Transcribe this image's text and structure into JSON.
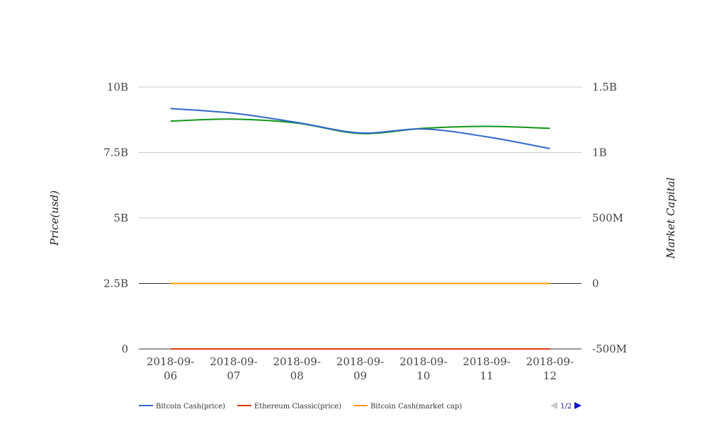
{
  "chart_data": {
    "type": "line",
    "categories": [
      "2018-09-06",
      "2018-09-07",
      "2018-09-08",
      "2018-09-09",
      "2018-09-10",
      "2018-09-11",
      "2018-09-12"
    ],
    "category_lines": [
      [
        "2018-09-",
        "06"
      ],
      [
        "2018-09-",
        "07"
      ],
      [
        "2018-09-",
        "08"
      ],
      [
        "2018-09-",
        "09"
      ],
      [
        "2018-09-",
        "10"
      ],
      [
        "2018-09-",
        "11"
      ],
      [
        "2018-09-",
        "12"
      ]
    ],
    "left_axis": {
      "title": "Price(usd)",
      "range": [
        0,
        10000000000
      ],
      "ticks": [
        {
          "value": 0,
          "label": "0"
        },
        {
          "value": 2500000000,
          "label": "2.5B"
        },
        {
          "value": 5000000000,
          "label": "5B"
        },
        {
          "value": 7500000000,
          "label": "7.5B"
        },
        {
          "value": 10000000000,
          "label": "10B"
        }
      ]
    },
    "right_axis": {
      "title": "Market Capital",
      "range": [
        -500000000,
        1500000000
      ],
      "ticks": [
        {
          "value": -500000000,
          "label": "-500M"
        },
        {
          "value": 0,
          "label": "0"
        },
        {
          "value": 500000000,
          "label": "500M"
        },
        {
          "value": 1000000000,
          "label": "1B"
        },
        {
          "value": 1500000000,
          "label": "1.5B"
        }
      ]
    },
    "series": [
      {
        "name": "Bitcoin Cash(price)",
        "axis": "left",
        "color": "#3366cc",
        "values": [
          9180000000,
          9000000000,
          8650000000,
          8250000000,
          8400000000,
          8100000000,
          7650000000
        ]
      },
      {
        "name": "Ethereum Classic(price)",
        "axis": "left",
        "color": "#dc3912",
        "values": [
          0,
          0,
          0,
          0,
          0,
          0,
          0
        ]
      },
      {
        "name": "Bitcoin Cash(market cap)",
        "axis": "right",
        "color": "#ff9900",
        "values": [
          0,
          0,
          0,
          0,
          0,
          0,
          0
        ]
      },
      {
        "axis": "right",
        "color": "#109618",
        "values": [
          1240000000,
          1255000000,
          1225000000,
          1145000000,
          1185000000,
          1200000000,
          1185000000
        ]
      }
    ],
    "legend": {
      "position": "bottom-left",
      "shown": [
        0,
        1,
        2
      ]
    },
    "pager": {
      "label": "1/2"
    },
    "grid": true
  }
}
